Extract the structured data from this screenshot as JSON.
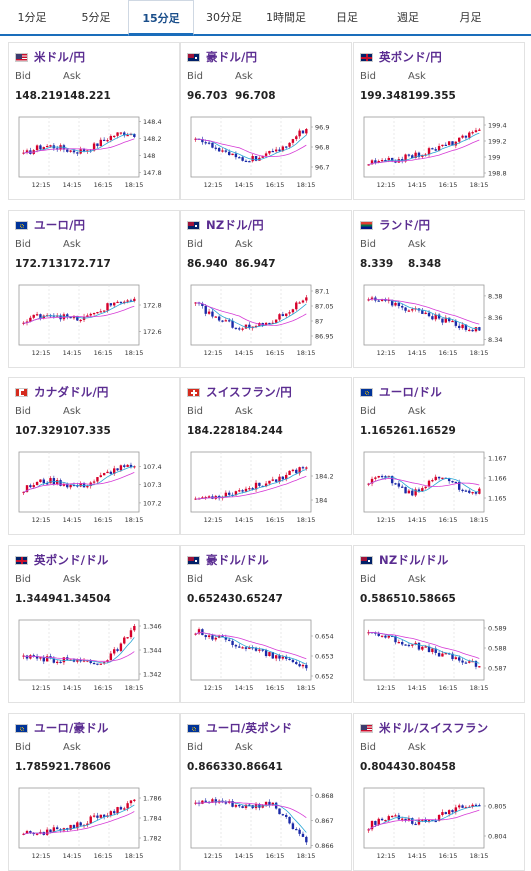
{
  "tabs": [
    "1分足",
    "5分足",
    "15分足",
    "30分足",
    "1時間足",
    "日足",
    "週足",
    "月足"
  ],
  "active_tab": 2,
  "x_ticks": [
    "12:15",
    "14:15",
    "16:15",
    "18:15"
  ],
  "colors": {
    "up": "#d6002a",
    "down": "#1b2aa8",
    "ma1": "#2aa7d6",
    "ma2": "#d63bd6",
    "title": "#5b2d91",
    "accent": "#1a6dbb"
  },
  "bid_label": "Bid",
  "ask_label": "Ask",
  "cards": [
    {
      "pair": "米ドル/円",
      "flag": "us-jp-flag",
      "bid": "148.219",
      "ask": "148.221",
      "yticks": [
        "148.4",
        "148.2",
        "148",
        "147.8"
      ],
      "ylim": [
        147.75,
        148.45
      ],
      "trend": "up-end"
    },
    {
      "pair": "豪ドル/円",
      "flag": "au-jp-flag",
      "bid": "96.703",
      "ask": "96.708",
      "yticks": [
        "96.9",
        "96.8",
        "96.7"
      ],
      "ylim": [
        96.65,
        96.95
      ],
      "trend": "dip"
    },
    {
      "pair": "英ポンド/円",
      "flag": "gb-jp-flag",
      "bid": "199.348",
      "ask": "199.355",
      "yticks": [
        "199.4",
        "199.2",
        "199",
        "198.8"
      ],
      "ylim": [
        198.75,
        199.5
      ],
      "trend": "rise"
    },
    {
      "pair": "ユーロ/円",
      "flag": "eu-jp-flag",
      "bid": "172.713",
      "ask": "172.717",
      "yticks": [
        "172.8",
        "172.6"
      ],
      "ylim": [
        172.5,
        172.95
      ],
      "trend": "up-end"
    },
    {
      "pair": "NZドル/円",
      "flag": "nz-jp-flag",
      "bid": "86.940",
      "ask": "86.947",
      "yticks": [
        "87.1",
        "87.05",
        "87",
        "86.95"
      ],
      "ylim": [
        86.92,
        87.12
      ],
      "trend": "dip"
    },
    {
      "pair": "ランド/円",
      "flag": "za-jp-flag",
      "bid": "8.339",
      "ask": "8.348",
      "yticks": [
        "8.38",
        "8.36",
        "8.34"
      ],
      "ylim": [
        8.335,
        8.39
      ],
      "trend": "fall"
    },
    {
      "pair": "カナダドル/円",
      "flag": "ca-jp-flag",
      "bid": "107.329",
      "ask": "107.335",
      "yticks": [
        "107.4",
        "107.3",
        "107.2"
      ],
      "ylim": [
        107.15,
        107.48
      ],
      "trend": "up-end"
    },
    {
      "pair": "スイスフラン/円",
      "flag": "ch-jp-flag",
      "bid": "184.228",
      "ask": "184.244",
      "yticks": [
        "184.2",
        "184"
      ],
      "ylim": [
        183.9,
        184.4
      ],
      "trend": "rise"
    },
    {
      "pair": "ユーロ/ドル",
      "flag": "eu-us-flag",
      "bid": "1.16526",
      "ask": "1.16529",
      "yticks": [
        "1.167",
        "1.166",
        "1.165"
      ],
      "ylim": [
        1.1643,
        1.1673
      ],
      "trend": "flat"
    },
    {
      "pair": "英ポンド/ドル",
      "flag": "gb-us-flag",
      "bid": "1.34494",
      "ask": "1.34504",
      "yticks": [
        "1.346",
        "1.344",
        "1.342"
      ],
      "ylim": [
        1.3415,
        1.3465
      ],
      "trend": "late-up"
    },
    {
      "pair": "豪ドル/ドル",
      "flag": "au-us-flag",
      "bid": "0.65243",
      "ask": "0.65247",
      "yticks": [
        "0.654",
        "0.653",
        "0.652"
      ],
      "ylim": [
        0.6518,
        0.6548
      ],
      "trend": "fall"
    },
    {
      "pair": "NZドル/ドル",
      "flag": "nz-us-flag",
      "bid": "0.58651",
      "ask": "0.58665",
      "yticks": [
        "0.589",
        "0.588",
        "0.587"
      ],
      "ylim": [
        0.5864,
        0.5894
      ],
      "trend": "fall"
    },
    {
      "pair": "ユーロ/豪ドル",
      "flag": "eu-au-flag",
      "bid": "1.78592",
      "ask": "1.78606",
      "yticks": [
        "1.786",
        "1.784",
        "1.782"
      ],
      "ylim": [
        1.781,
        1.787
      ],
      "trend": "rise"
    },
    {
      "pair": "ユーロ/英ポンド",
      "flag": "eu-gb-flag",
      "bid": "0.86633",
      "ask": "0.86641",
      "yticks": [
        "0.868",
        "0.867",
        "0.866"
      ],
      "ylim": [
        0.8659,
        0.8683
      ],
      "trend": "late-fall"
    },
    {
      "pair": "米ドル/スイスフラン",
      "flag": "us-ch-flag",
      "bid": "0.80443",
      "ask": "0.80458",
      "yticks": [
        "0.805",
        "0.804"
      ],
      "ylim": [
        0.8036,
        0.8056
      ],
      "trend": "up-end"
    }
  ]
}
